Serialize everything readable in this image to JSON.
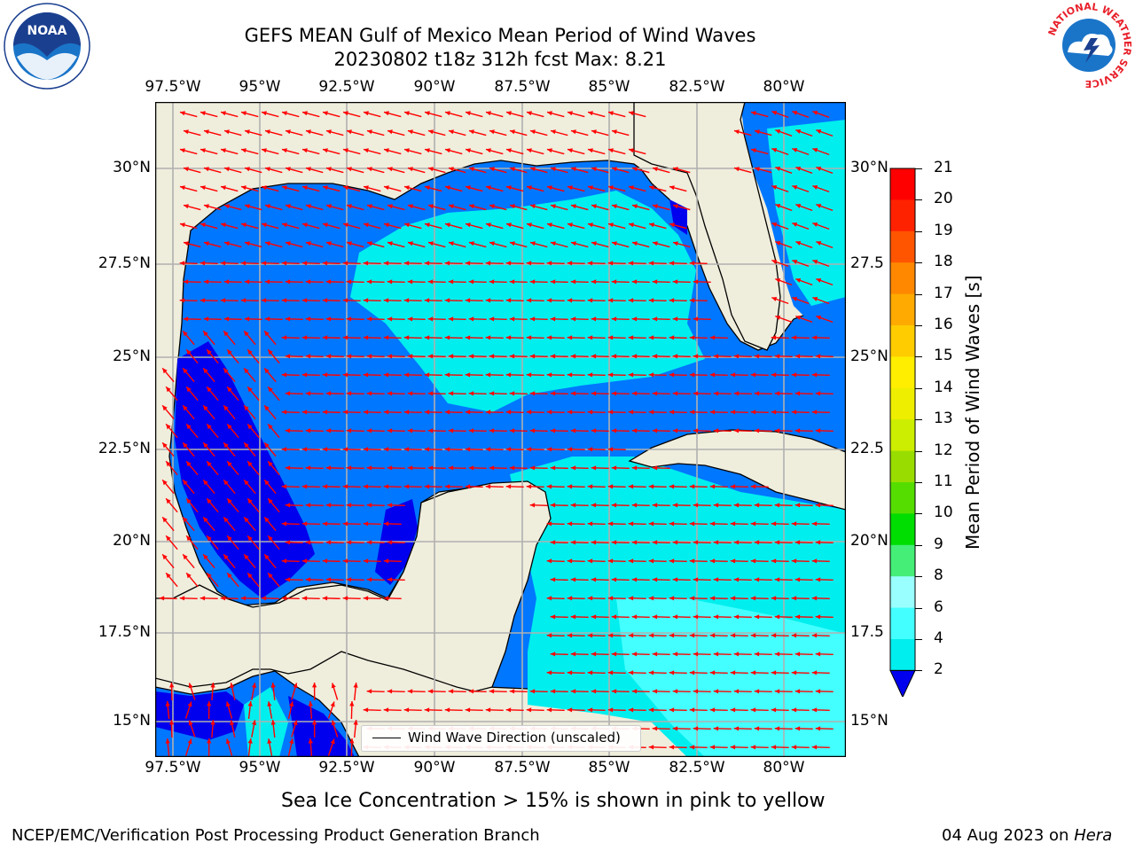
{
  "title": {
    "line1": "GEFS MEAN Gulf of Mexico Mean Period of Wind Waves",
    "line2": "20230802 t18z 312h fcst   Max: 8.21"
  },
  "map": {
    "lon_labels": [
      "97.5°W",
      "95°W",
      "92.5°W",
      "90°W",
      "87.5°W",
      "85°W",
      "82.5°W",
      "80°W"
    ],
    "lat_labels_left": [
      "30°N",
      "27.5°N",
      "25°N",
      "22.5°N",
      "20°N",
      "17.5°N",
      "15°N"
    ],
    "lat_labels_right": [
      "30°N",
      "27.5",
      "25°N",
      "22.5",
      "20°N",
      "17.5",
      "15°N"
    ],
    "legend_text": "Wind Wave Direction (unscaled)",
    "colors": {
      "land": "#efeddc",
      "gridline": "#b0b0b0",
      "arrow": "#ff0000",
      "coast": "#000000"
    }
  },
  "colorbar": {
    "label": "Mean Period of Wind Waves [s]",
    "ticks": [
      "2",
      "4",
      "6",
      "8",
      "9",
      "10",
      "11",
      "12",
      "13",
      "14",
      "15",
      "16",
      "17",
      "18",
      "19",
      "20",
      "21"
    ],
    "colors": [
      "#0000ee",
      "#0077ff",
      "#00eeee",
      "#44ffff",
      "#99ffff",
      "#44ee77",
      "#00dd00",
      "#55dd00",
      "#99dd00",
      "#ccee00",
      "#eeee00",
      "#ffee00",
      "#ffcc00",
      "#ffaa00",
      "#ff8800",
      "#ff5500",
      "#ff2200",
      "#ff0000"
    ]
  },
  "subtitle": "Sea Ice Concentration > 15% is shown in pink to yellow",
  "footer": {
    "left": "NCEP/EMC/Verification Post Processing Product Generation Branch",
    "right_date": "04 Aug 2023 on",
    "right_machine": "Hera"
  },
  "logos": {
    "noaa": "NOAA",
    "nws": "NATIONAL WEATHER SERVICE"
  }
}
